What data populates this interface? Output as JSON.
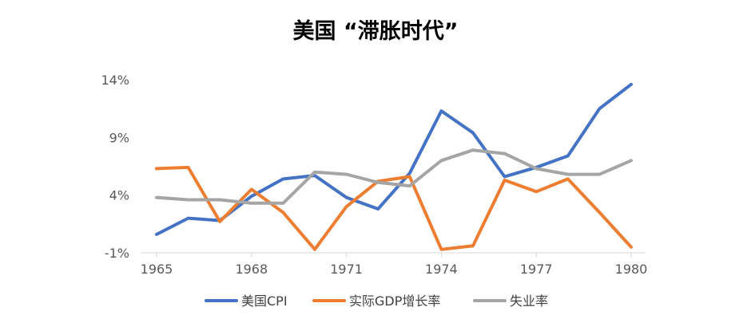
{
  "chart_data": {
    "type": "line",
    "title": "美国 “滞胀时代”",
    "xlabel": "",
    "ylabel": "",
    "x_tick_labels": [
      "1965",
      "1968",
      "1971",
      "1974",
      "1977",
      "1980"
    ],
    "y_tick_labels": [
      "14%",
      "9%",
      "4%",
      "-1%"
    ],
    "x_range": [
      1965,
      1980
    ],
    "ylim": [
      -1,
      14
    ],
    "y_ticks": [
      -1,
      4,
      9,
      14
    ],
    "x_ticks": [
      1965,
      1968,
      1971,
      1974,
      1977,
      1980
    ],
    "grid": false,
    "legend_position": "bottom",
    "x": [
      1965,
      1966,
      1967,
      1968,
      1969,
      1970,
      1971,
      1972,
      1973,
      1974,
      1975,
      1976,
      1977,
      1978,
      1979,
      1980
    ],
    "series": [
      {
        "name": "美国CPI",
        "color": "#4472C4",
        "values": [
          0.6,
          2.0,
          1.8,
          3.9,
          5.4,
          5.7,
          3.8,
          2.8,
          5.9,
          11.3,
          9.4,
          5.6,
          6.4,
          7.4,
          11.5,
          13.6
        ]
      },
      {
        "name": "实际GDP增长率",
        "color": "#ED7D31",
        "values": [
          6.3,
          6.4,
          1.7,
          4.5,
          2.5,
          -0.7,
          3.0,
          5.2,
          5.6,
          -0.7,
          -0.4,
          5.3,
          4.3,
          5.4,
          2.5,
          -0.5
        ]
      },
      {
        "name": "失业率",
        "color": "#A5A5A5",
        "values": [
          3.8,
          3.6,
          3.6,
          3.3,
          3.3,
          6.0,
          5.8,
          5.1,
          4.8,
          7.0,
          7.9,
          7.6,
          6.3,
          5.8,
          5.8,
          7.0
        ]
      }
    ]
  }
}
